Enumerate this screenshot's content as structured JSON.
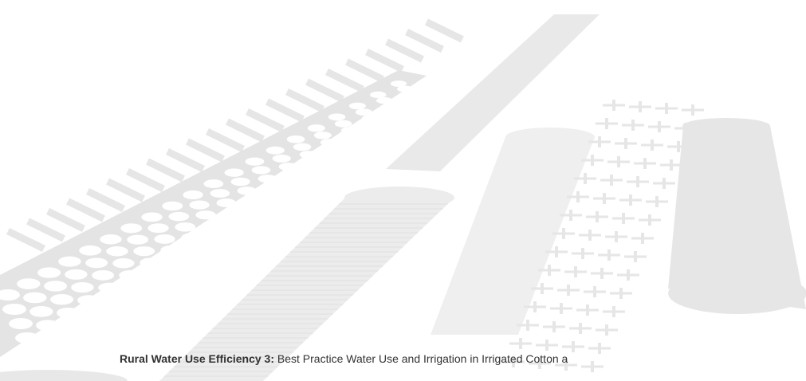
{
  "caption": {
    "bold": "Rural Water Use Efficiency 3:",
    "text": "Best Practice Water Use and Irrigation in Irrigated Cotton a"
  }
}
